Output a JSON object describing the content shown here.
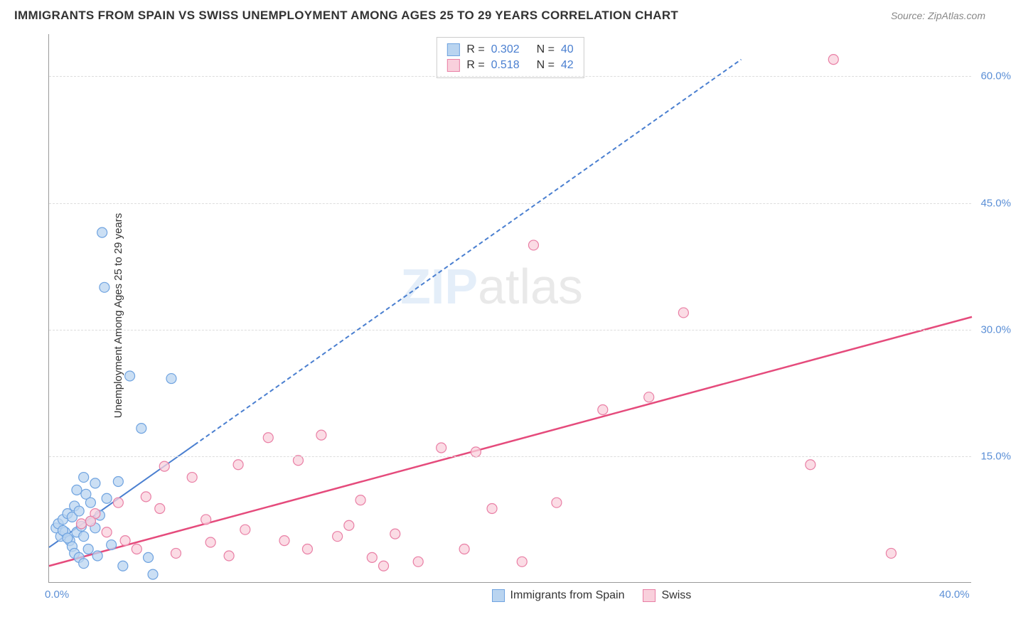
{
  "header": {
    "title": "IMMIGRANTS FROM SPAIN VS SWISS UNEMPLOYMENT AMONG AGES 25 TO 29 YEARS CORRELATION CHART",
    "source_prefix": "Source: ",
    "source_name": "ZipAtlas.com"
  },
  "chart": {
    "type": "scatter",
    "ylabel": "Unemployment Among Ages 25 to 29 years",
    "xlim": [
      0,
      40
    ],
    "ylim": [
      0,
      65
    ],
    "xticks": [
      {
        "v": 0,
        "label": "0.0%"
      },
      {
        "v": 40,
        "label": "40.0%"
      }
    ],
    "yticks": [
      {
        "v": 15,
        "label": "15.0%"
      },
      {
        "v": 30,
        "label": "30.0%"
      },
      {
        "v": 45,
        "label": "45.0%"
      },
      {
        "v": 60,
        "label": "60.0%"
      }
    ],
    "grid_color": "#dddddd",
    "axis_color": "#999999",
    "background_color": "#ffffff",
    "tick_color": "#5b8fd6",
    "marker_radius": 7,
    "marker_stroke_width": 1.2,
    "series": [
      {
        "name": "Immigrants from Spain",
        "fill": "#b9d4f0",
        "stroke": "#6fa3e0",
        "r": 0.302,
        "n": 40,
        "trend": {
          "x1": 0,
          "y1": 4.2,
          "x2": 30,
          "y2": 62,
          "solid_until_x": 6.3,
          "color": "#4a7fd0",
          "width": 2
        },
        "points": [
          [
            0.3,
            6.5
          ],
          [
            0.4,
            7.0
          ],
          [
            0.5,
            5.5
          ],
          [
            0.6,
            7.5
          ],
          [
            0.7,
            6.0
          ],
          [
            0.8,
            8.2
          ],
          [
            0.9,
            5.0
          ],
          [
            1.0,
            7.8
          ],
          [
            1.0,
            4.3
          ],
          [
            1.1,
            9.1
          ],
          [
            1.1,
            3.5
          ],
          [
            1.2,
            6.0
          ],
          [
            1.2,
            11.0
          ],
          [
            1.3,
            8.5
          ],
          [
            1.3,
            3.0
          ],
          [
            1.4,
            6.7
          ],
          [
            1.5,
            12.5
          ],
          [
            1.5,
            5.5
          ],
          [
            1.5,
            2.3
          ],
          [
            1.6,
            10.5
          ],
          [
            1.7,
            4.0
          ],
          [
            1.8,
            9.5
          ],
          [
            1.8,
            7.3
          ],
          [
            2.0,
            11.8
          ],
          [
            2.0,
            6.5
          ],
          [
            2.1,
            3.2
          ],
          [
            2.2,
            8.0
          ],
          [
            2.3,
            41.5
          ],
          [
            2.4,
            35.0
          ],
          [
            2.5,
            10.0
          ],
          [
            2.7,
            4.5
          ],
          [
            3.0,
            12.0
          ],
          [
            3.2,
            2.0
          ],
          [
            3.5,
            24.5
          ],
          [
            4.0,
            18.3
          ],
          [
            4.3,
            3.0
          ],
          [
            4.5,
            1.0
          ],
          [
            5.3,
            24.2
          ],
          [
            0.6,
            6.2
          ],
          [
            0.8,
            5.3
          ]
        ]
      },
      {
        "name": "Swiss",
        "fill": "#f9d0dc",
        "stroke": "#e97fa5",
        "r": 0.518,
        "n": 42,
        "trend": {
          "x1": 0,
          "y1": 2.0,
          "x2": 40,
          "y2": 31.5,
          "solid_until_x": 40,
          "color": "#e54b7c",
          "width": 2.5
        },
        "points": [
          [
            1.4,
            7.0
          ],
          [
            2.0,
            8.2
          ],
          [
            2.5,
            6.0
          ],
          [
            3.0,
            9.5
          ],
          [
            3.3,
            5.0
          ],
          [
            3.8,
            4.0
          ],
          [
            4.2,
            10.2
          ],
          [
            4.8,
            8.8
          ],
          [
            5.0,
            13.8
          ],
          [
            5.5,
            3.5
          ],
          [
            6.2,
            12.5
          ],
          [
            6.8,
            7.5
          ],
          [
            7.0,
            4.8
          ],
          [
            7.8,
            3.2
          ],
          [
            8.2,
            14.0
          ],
          [
            8.5,
            6.3
          ],
          [
            9.5,
            17.2
          ],
          [
            10.2,
            5.0
          ],
          [
            10.8,
            14.5
          ],
          [
            11.2,
            4.0
          ],
          [
            11.8,
            17.5
          ],
          [
            12.5,
            5.5
          ],
          [
            13.0,
            6.8
          ],
          [
            13.5,
            9.8
          ],
          [
            14.0,
            3.0
          ],
          [
            14.5,
            2.0
          ],
          [
            15.0,
            5.8
          ],
          [
            16.0,
            2.5
          ],
          [
            17.0,
            16.0
          ],
          [
            18.0,
            4.0
          ],
          [
            18.5,
            15.5
          ],
          [
            19.2,
            8.8
          ],
          [
            20.5,
            2.5
          ],
          [
            21.0,
            40.0
          ],
          [
            22.0,
            9.5
          ],
          [
            24.0,
            20.5
          ],
          [
            26.0,
            22.0
          ],
          [
            27.5,
            32.0
          ],
          [
            33.0,
            14.0
          ],
          [
            34.0,
            62.0
          ],
          [
            36.5,
            3.5
          ],
          [
            1.8,
            7.3
          ]
        ]
      }
    ],
    "legend_top": {
      "items": [
        {
          "swatch_fill": "#b9d4f0",
          "swatch_stroke": "#6fa3e0",
          "r_label": "R =",
          "r": "0.302",
          "n_label": "N =",
          "n": "40"
        },
        {
          "swatch_fill": "#f9d0dc",
          "swatch_stroke": "#e97fa5",
          "r_label": "R =",
          "r": "0.518",
          "n_label": "N =",
          "n": "42"
        }
      ]
    },
    "legend_bottom": {
      "items": [
        {
          "swatch_fill": "#b9d4f0",
          "swatch_stroke": "#6fa3e0",
          "label": "Immigrants from Spain"
        },
        {
          "swatch_fill": "#f9d0dc",
          "swatch_stroke": "#e97fa5",
          "label": "Swiss"
        }
      ]
    },
    "watermark": {
      "part1": "ZIP",
      "part2": "atlas"
    }
  }
}
